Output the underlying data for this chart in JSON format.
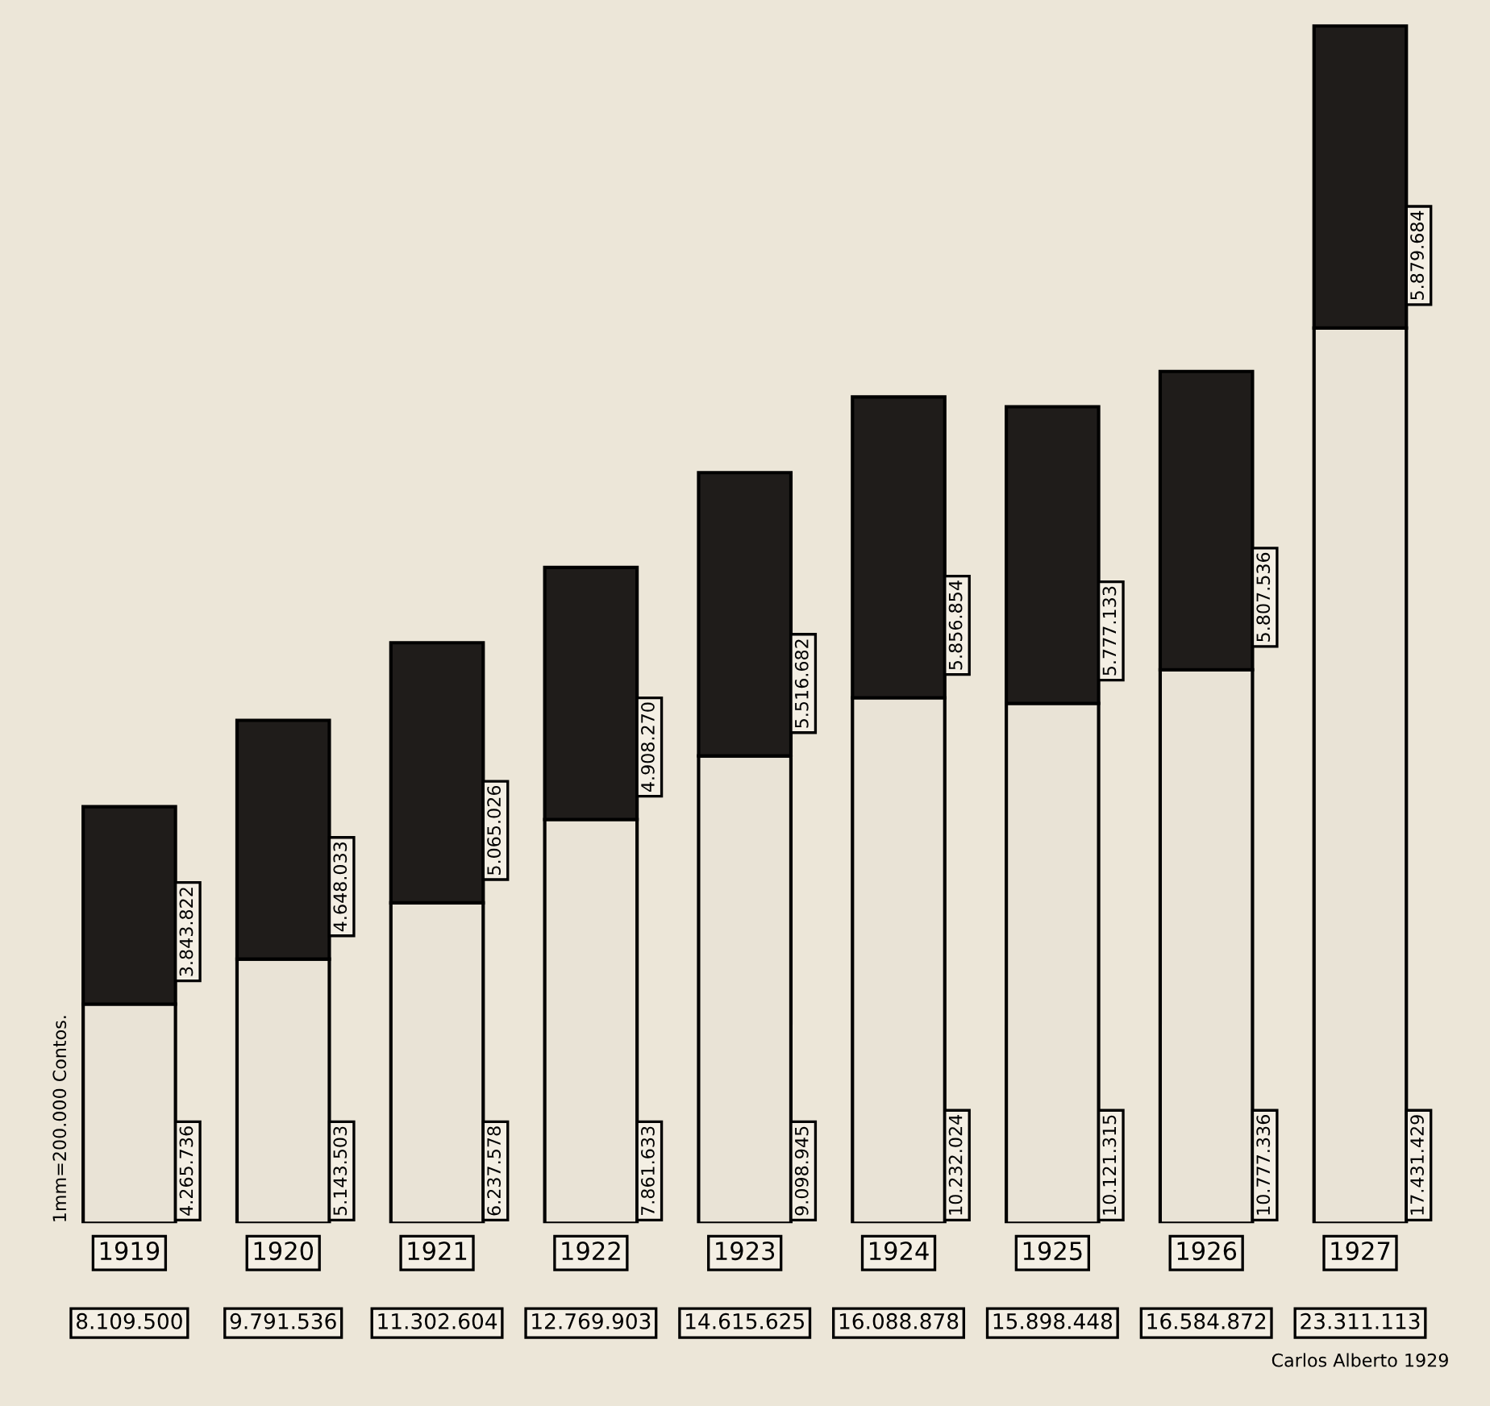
{
  "chart_data": {
    "type": "bar",
    "stacked": true,
    "categories": [
      "1919",
      "1920",
      "1921",
      "1922",
      "1923",
      "1924",
      "1925",
      "1926",
      "1927"
    ],
    "series": [
      {
        "color": "#e9e3d6",
        "values": [
          4265736,
          5143503,
          6237578,
          7861633,
          9098945,
          10232024,
          10121315,
          10777336,
          17431429
        ],
        "value_labels": [
          "4.265.736",
          "5.143.503",
          "6.237.578",
          "7.861.633",
          "9.098.945",
          "10.232.024",
          "10.121.315",
          "10.777.336",
          "17.431.429"
        ]
      },
      {
        "color": "#1f1c1a",
        "values": [
          3843822,
          4648033,
          5065026,
          4908270,
          5516682,
          5856854,
          5777133,
          5807536,
          5879684
        ],
        "value_labels": [
          "3.843.822",
          "4.648.033",
          "5.065.026",
          "4.908.270",
          "5.516.682",
          "5.856.854",
          "5.777.133",
          "5.807.536",
          "5.879.684"
        ]
      }
    ],
    "annotations": [
      "1mm=200.000 Contos.",
      "Carlos Alberto 1929",
      "8.109.500",
      "9.791.536",
      "11.302.604",
      "12.769.903",
      "14.615.625",
      "16.088.878",
      "15.898.448",
      "16.584.872",
      "23.311.113"
    ]
  }
}
